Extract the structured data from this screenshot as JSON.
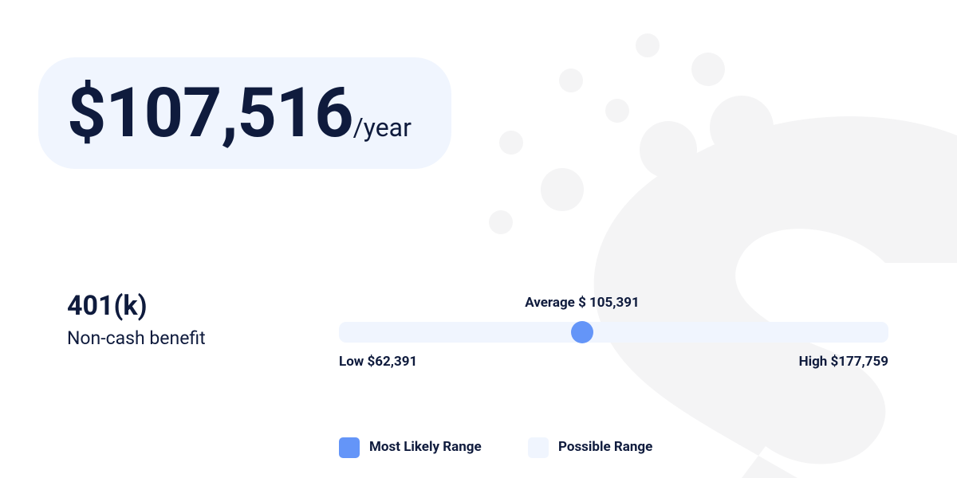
{
  "salary": {
    "amount": "$107,516",
    "unit": "/year"
  },
  "benefit": {
    "title": "401(k)",
    "subtitle": "Non-cash benefit"
  },
  "range": {
    "average_label": "Average $ 105,391",
    "low_label": "Low $62,391",
    "high_label": "High $177,759"
  },
  "legend": [
    {
      "label": "Most Likely Range",
      "color": "#6495f8"
    },
    {
      "label": "Possible Range",
      "color": "#f0f5fe"
    }
  ]
}
